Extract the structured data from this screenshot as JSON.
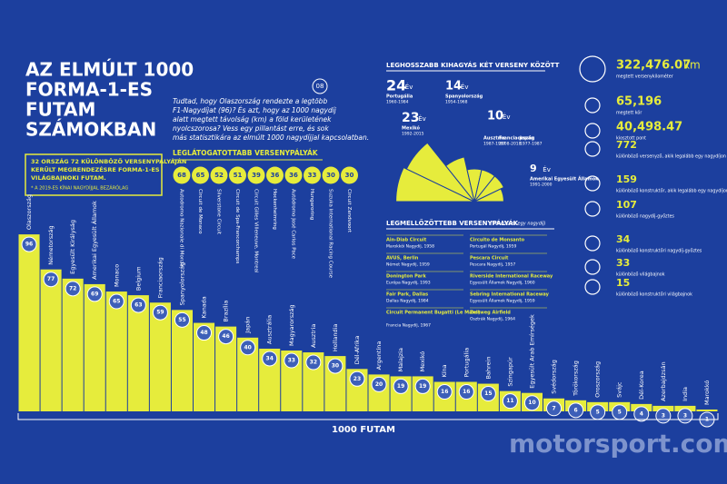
{
  "header": {
    "title_lines": [
      "AZ ELMÚLT 1000",
      "FORMA-1-ES",
      "FUTAM",
      "SZÁMOKBAN"
    ],
    "badge": "08",
    "intro_lines": [
      "Tudtad, hogy Olaszország rendezte a legtöbb",
      "F1-Nagydíjat (96)? És azt, hogy az 1000 nagydíj",
      "alatt megtett távolság (km) a föld kerületének",
      "nyolcszorosa? Vess egy pillantást erre, és sok",
      "más statisztikára az elmúlt 1000 nagydíjjal kapcsolatban."
    ]
  },
  "note": {
    "lines": [
      "32 ORSZÁG 72 KÜLÖNBÖZŐ VERSENYPÁLYÁJÁN",
      "KERÜLT MEGRENDEZÉSRE FORMA-1-ES",
      "VILÁGBAJNOKI FUTAM."
    ],
    "footnote": "* A 2019-ES KÍNAI NAGYDÍJJAL BEZÁRÓLAG"
  },
  "tracks": {
    "title": "LEGLÁTOGATOTTABB VERSENYPÁLYÁK",
    "values": [
      68,
      65,
      52,
      51,
      39,
      36,
      36,
      33,
      30,
      30
    ],
    "names": [
      "Autodromo Nazionale di Monza",
      "Circuit de Monaco",
      "Silverstone Circuit",
      "Circuit de Spa-Francorchamps",
      "Circuit Gilles Villeneuve, Montreal",
      "Hockenheimring",
      "Autódromo José Carlos Pace",
      "Hungaroring",
      "Suzuka International Racing Course",
      "Circuit Zandvoort"
    ]
  },
  "gaps": {
    "title": "LEGHOSSZABB KIHAGYÁS KÉT VERSENY KÖZÖTT",
    "unit": "Év",
    "items": [
      {
        "years": 24,
        "country": "Portugália",
        "period": "1960-1984"
      },
      {
        "years": 23,
        "country": "Mexikó",
        "period": "1992-2015"
      },
      {
        "years": 14,
        "country": "Spanyolország",
        "period": "1954-1968"
      },
      {
        "years": 10,
        "country": "Ausztria",
        "period": "1987-1997"
      },
      {
        "years": 10,
        "country": "Franciaország",
        "period": "2008-2018"
      },
      {
        "years": 10,
        "country": "Japán",
        "period": "1977-1987"
      },
      {
        "years": 9,
        "country": "Amerikai Egyesült Államok",
        "period": "1991-2000"
      }
    ]
  },
  "rare": {
    "title": "LEGMELLŐZÖTTEBB VERSENYPÁLYÁK",
    "subtitle": "(Mindössze egy nagydíj)",
    "items": [
      {
        "track": "Ain-Diab Circuit",
        "race": "Marokkói Nagydíj, 1958"
      },
      {
        "track": "AVUS, Berlin",
        "race": "Német Nagydíj, 1959"
      },
      {
        "track": "Donington Park",
        "race": "Európa Nagydíj, 1993"
      },
      {
        "track": "Fair Park, Dallas",
        "race": "Dallas Nagydíj, 1984"
      },
      {
        "track": "Circuit Permanent Bugatti (Le Mans)",
        "race": "Francia Nagydíj, 1967"
      },
      {
        "track": "Circuito de Monsanto",
        "race": "Portugál Nagydíj, 1959"
      },
      {
        "track": "Pescara Circuit",
        "race": "Pescara Nagydíj, 1957"
      },
      {
        "track": "Riverside International Raceway",
        "race": "Egyesült Államok Nagydíj, 1960"
      },
      {
        "track": "Sebring International Raceway",
        "race": "Egyesült Államok Nagydíj, 1959"
      },
      {
        "track": "Zeltweg Airfield",
        "race": "Osztrák Nagydíj, 1964"
      }
    ]
  },
  "stats": [
    {
      "value": "322,476.07",
      "unit": "km",
      "label": "megtett versenykilométer"
    },
    {
      "value": "65,196",
      "label": "megtett kör"
    },
    {
      "value": "40,498.47",
      "label": "kiosztott pont"
    },
    {
      "value": "772",
      "label": "különböző versenyző, akik legalább egy nagydíjon rajthoz álltak"
    },
    {
      "value": "159",
      "label": "különböző konstruktőr, akik legalább egy nagydíjon rajthoz álltak"
    },
    {
      "value": "107",
      "label": "különböző nagydíj-győztes"
    },
    {
      "value": "34",
      "label": "különböző konstruktőri nagydíj-győztes"
    },
    {
      "value": "33",
      "label": "különböző világbajnok"
    },
    {
      "value": "15",
      "label": "különböző konstruktőri világbajnok"
    }
  ],
  "chart_data": {
    "type": "bar",
    "color": "#e6ec3c",
    "axis_label": "1000 FUTAM",
    "categories": [
      "Olaszország",
      "Németország",
      "Egyesült Királyság",
      "Amerikai Egyesült Államok",
      "Monaco",
      "Belgium",
      "Franciaország",
      "Spanyolország",
      "Kanada",
      "Brazília",
      "Japán",
      "Ausztrália",
      "Magyarország",
      "Ausztria",
      "Hollandia",
      "Dél-Afrika",
      "Argentína",
      "Malajzia",
      "Mexikó",
      "Kína",
      "Portugália",
      "Bahrein",
      "Szingapúr",
      "Egyesült Arab Emírségek",
      "Svédország",
      "Törökország",
      "Oroszország",
      "Svájc",
      "Dél-Korea",
      "Azerbajdzsán",
      "India",
      "Marokkó"
    ],
    "values": [
      96,
      77,
      72,
      69,
      65,
      63,
      59,
      55,
      48,
      46,
      40,
      34,
      33,
      32,
      30,
      23,
      20,
      19,
      19,
      16,
      16,
      15,
      11,
      10,
      7,
      6,
      5,
      5,
      4,
      3,
      3,
      1
    ]
  },
  "watermark": "motorsport.com"
}
